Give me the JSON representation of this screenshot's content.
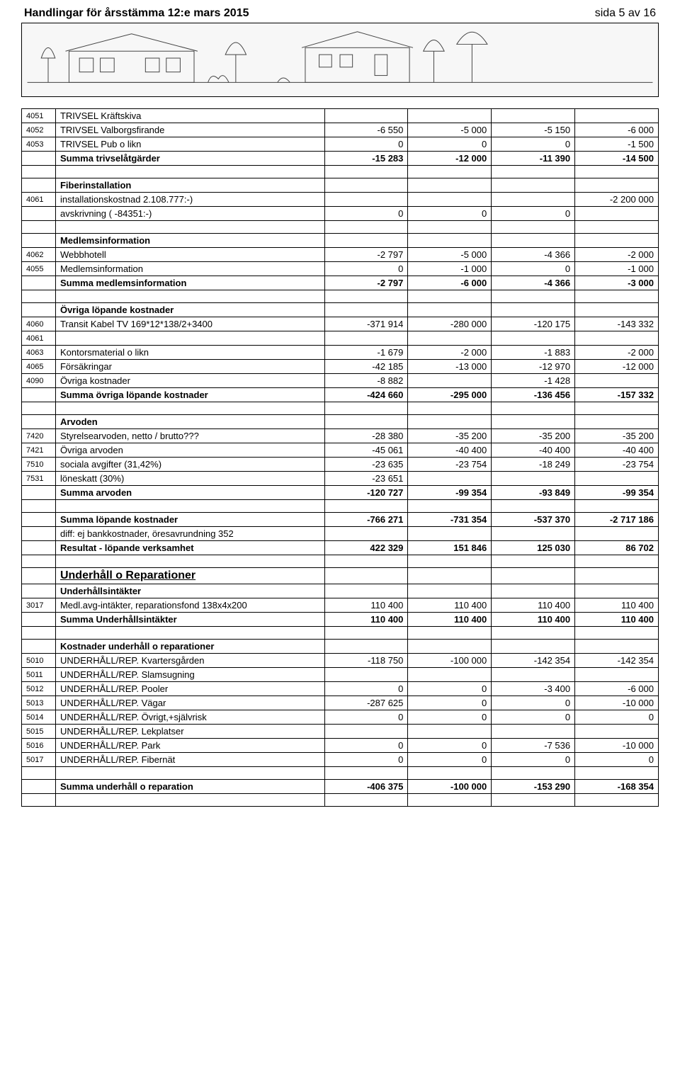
{
  "header": {
    "title": "Handlingar för årsstämma 12:e mars  2015",
    "page": "sida 5 av 16"
  },
  "rows": [
    {
      "type": "data",
      "code": "4051",
      "desc": "TRIVSEL Kräftskiva",
      "c1": "",
      "c2": "",
      "c3": "",
      "c4": ""
    },
    {
      "type": "data",
      "code": "4052",
      "desc": "TRIVSEL Valborgsfirande",
      "c1": "-6 550",
      "c2": "-5 000",
      "c3": "-5 150",
      "c4": "-6 000"
    },
    {
      "type": "data",
      "code": "4053",
      "desc": "TRIVSEL Pub o likn",
      "c1": "0",
      "c2": "0",
      "c3": "0",
      "c4": "-1 500"
    },
    {
      "type": "data",
      "code": "",
      "desc": "Summa trivselåtgärder",
      "c1": "-15 283",
      "c2": "-12 000",
      "c3": "-11 390",
      "c4": "-14 500",
      "bold": true
    },
    {
      "type": "blank"
    },
    {
      "type": "data",
      "code": "",
      "desc": "Fiberinstallation",
      "c1": "",
      "c2": "",
      "c3": "",
      "c4": "",
      "bold": true
    },
    {
      "type": "data",
      "code": "4061",
      "desc": "installationskostnad 2.108.777:-)",
      "c1": "",
      "c2": "",
      "c3": "",
      "c4": "-2 200 000"
    },
    {
      "type": "data",
      "code": "",
      "desc": "avskrivning ( -84351:-)",
      "c1": "0",
      "c2": "0",
      "c3": "0",
      "c4": ""
    },
    {
      "type": "blank"
    },
    {
      "type": "data",
      "code": "",
      "desc": "Medlemsinformation",
      "c1": "",
      "c2": "",
      "c3": "",
      "c4": "",
      "bold": true
    },
    {
      "type": "data",
      "code": "4062",
      "desc": "Webbhotell",
      "c1": "-2 797",
      "c2": "-5 000",
      "c3": "-4 366",
      "c4": "-2 000"
    },
    {
      "type": "data",
      "code": "4055",
      "desc": "Medlemsinformation",
      "c1": "0",
      "c2": "-1 000",
      "c3": "0",
      "c4": "-1 000"
    },
    {
      "type": "data",
      "code": "",
      "desc": "Summa medlemsinformation",
      "c1": "-2 797",
      "c2": "-6 000",
      "c3": "-4 366",
      "c4": "-3 000",
      "bold": true
    },
    {
      "type": "blank"
    },
    {
      "type": "data",
      "code": "",
      "desc": "Övriga löpande kostnader",
      "c1": "",
      "c2": "",
      "c3": "",
      "c4": "",
      "bold": true
    },
    {
      "type": "data",
      "code": "4060",
      "desc": "Transit Kabel TV 169*12*138/2+3400",
      "c1": "-371 914",
      "c2": "-280 000",
      "c3": "-120 175",
      "c4": "-143 332"
    },
    {
      "type": "data",
      "code": "4061",
      "desc": "",
      "c1": "",
      "c2": "",
      "c3": "",
      "c4": ""
    },
    {
      "type": "data",
      "code": "4063",
      "desc": "Kontorsmaterial o likn",
      "c1": "-1 679",
      "c2": "-2 000",
      "c3": "-1 883",
      "c4": "-2 000"
    },
    {
      "type": "data",
      "code": "4065",
      "desc": "Försäkringar",
      "c1": "-42 185",
      "c2": "-13 000",
      "c3": "-12 970",
      "c4": "-12 000"
    },
    {
      "type": "data",
      "code": "4090",
      "desc": "Övriga kostnader",
      "c1": "-8 882",
      "c2": "",
      "c3": "-1 428",
      "c4": ""
    },
    {
      "type": "data",
      "code": "",
      "desc": "Summa övriga löpande kostnader",
      "c1": "-424 660",
      "c2": "-295 000",
      "c3": "-136 456",
      "c4": "-157 332",
      "bold": true
    },
    {
      "type": "blank"
    },
    {
      "type": "data",
      "code": "",
      "desc": "Arvoden",
      "c1": "",
      "c2": "",
      "c3": "",
      "c4": "",
      "bold": true
    },
    {
      "type": "data",
      "code": "7420",
      "desc": "Styrelsearvoden, netto / brutto???",
      "c1": "-28 380",
      "c2": "-35 200",
      "c3": "-35 200",
      "c4": "-35 200"
    },
    {
      "type": "data",
      "code": "7421",
      "desc": "Övriga arvoden",
      "c1": "-45 061",
      "c2": "-40 400",
      "c3": "-40 400",
      "c4": "-40 400"
    },
    {
      "type": "data",
      "code": "7510",
      "desc": "sociala avgifter (31,42%)",
      "c1": "-23 635",
      "c2": "-23 754",
      "c3": "-18 249",
      "c4": "-23 754"
    },
    {
      "type": "data",
      "code": "7531",
      "desc": "löneskatt (30%)",
      "c1": "-23 651",
      "c2": "",
      "c3": "",
      "c4": ""
    },
    {
      "type": "data",
      "code": "",
      "desc": "Summa arvoden",
      "c1": "-120 727",
      "c2": "-99 354",
      "c3": "-93 849",
      "c4": "-99 354",
      "bold": true
    },
    {
      "type": "blank"
    },
    {
      "type": "data",
      "code": "",
      "desc": "Summa löpande kostnader",
      "c1": "-766 271",
      "c2": "-731 354",
      "c3": "-537 370",
      "c4": "-2 717 186",
      "bold": true
    },
    {
      "type": "data",
      "code": "",
      "desc": "diff: ej bankkostnader, öresavrundning 352",
      "c1": "",
      "c2": "",
      "c3": "",
      "c4": ""
    },
    {
      "type": "data",
      "code": "",
      "desc": "Resultat - löpande verksamhet",
      "c1": "422 329",
      "c2": "151 846",
      "c3": "125 030",
      "c4": "86 702",
      "bold": true
    },
    {
      "type": "blank"
    },
    {
      "type": "data",
      "code": "",
      "desc": "Underhåll o Reparationer",
      "c1": "",
      "c2": "",
      "c3": "",
      "c4": "",
      "section": true
    },
    {
      "type": "data",
      "code": "",
      "desc": "Underhållsintäkter",
      "c1": "",
      "c2": "",
      "c3": "",
      "c4": "",
      "bold": true
    },
    {
      "type": "data",
      "code": "3017",
      "desc": "Medl.avg-intäkter, reparationsfond 138x4x200",
      "c1": "110 400",
      "c2": "110 400",
      "c3": "110 400",
      "c4": "110 400"
    },
    {
      "type": "data",
      "code": "",
      "desc": "Summa Underhållsintäkter",
      "c1": "110 400",
      "c2": "110 400",
      "c3": "110 400",
      "c4": "110 400",
      "bold": true
    },
    {
      "type": "blank"
    },
    {
      "type": "data",
      "code": "",
      "desc": "Kostnader underhåll o reparationer",
      "c1": "",
      "c2": "",
      "c3": "",
      "c4": "",
      "bold": true
    },
    {
      "type": "data",
      "code": "5010",
      "desc": "UNDERHÅLL/REP. Kvartersgården",
      "c1": "-118 750",
      "c2": "-100 000",
      "c3": "-142 354",
      "c4": "-142 354"
    },
    {
      "type": "data",
      "code": "5011",
      "desc": "UNDERHÅLL/REP. Slamsugning",
      "c1": "",
      "c2": "",
      "c3": "",
      "c4": ""
    },
    {
      "type": "data",
      "code": "5012",
      "desc": "UNDERHÅLL/REP. Pooler",
      "c1": "0",
      "c2": "0",
      "c3": "-3 400",
      "c4": "-6 000"
    },
    {
      "type": "data",
      "code": "5013",
      "desc": "UNDERHÅLL/REP. Vägar",
      "c1": "-287 625",
      "c2": "0",
      "c3": "0",
      "c4": "-10 000"
    },
    {
      "type": "data",
      "code": "5014",
      "desc": "UNDERHÅLL/REP. Övrigt,+självrisk",
      "c1": "0",
      "c2": "0",
      "c3": "0",
      "c4": "0"
    },
    {
      "type": "data",
      "code": "5015",
      "desc": "UNDERHÅLL/REP. Lekplatser",
      "c1": "",
      "c2": "",
      "c3": "",
      "c4": ""
    },
    {
      "type": "data",
      "code": "5016",
      "desc": "UNDERHÅLL/REP. Park",
      "c1": "0",
      "c2": "0",
      "c3": "-7 536",
      "c4": "-10 000"
    },
    {
      "type": "data",
      "code": "5017",
      "desc": "UNDERHÅLL/REP. Fibernät",
      "c1": "0",
      "c2": "0",
      "c3": "0",
      "c4": "0"
    },
    {
      "type": "blank"
    },
    {
      "type": "data",
      "code": "",
      "desc": "Summa underhåll o reparation",
      "c1": "-406 375",
      "c2": "-100 000",
      "c3": "-153 290",
      "c4": "-168 354",
      "bold": true
    },
    {
      "type": "blank"
    }
  ]
}
